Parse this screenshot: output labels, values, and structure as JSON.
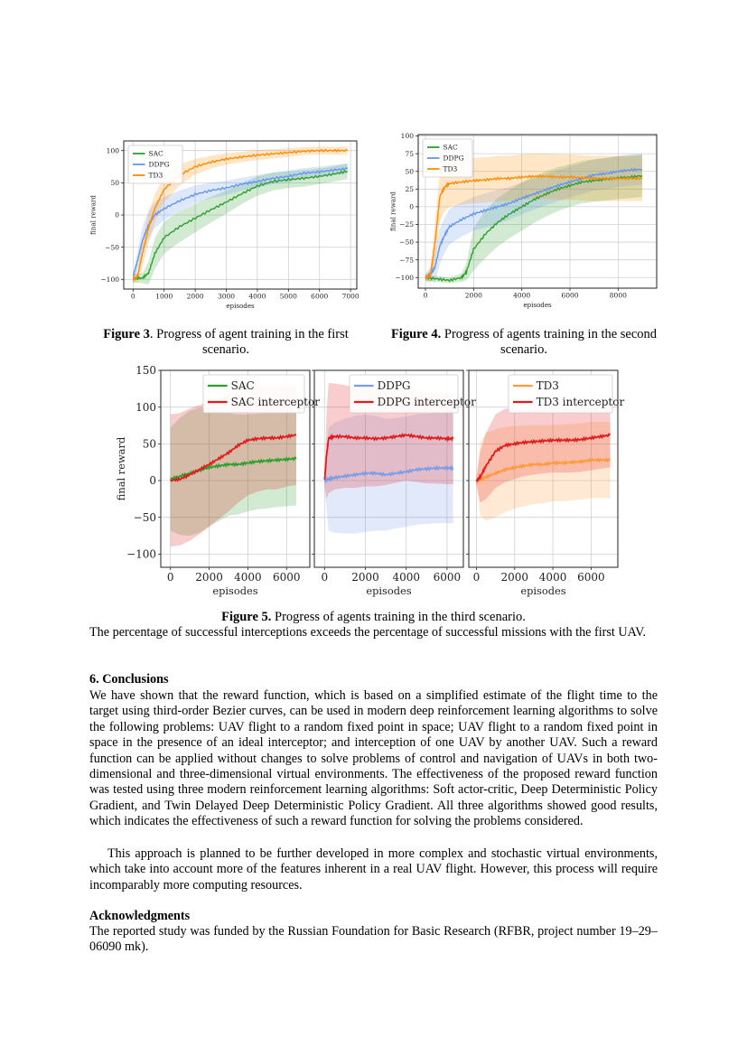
{
  "figures": {
    "fig3": {
      "caption_label": "Figure 3",
      "caption_text": ". Progress of agent training in the first scenario."
    },
    "fig4": {
      "caption_label": "Figure 4.",
      "caption_text": " Progress of agents training in the second scenario."
    },
    "fig5": {
      "caption_label": "Figure 5.",
      "caption_text": " Progress of agents training in the third scenario."
    }
  },
  "body": {
    "p_interceptions": "The percentage of successful interceptions exceeds the percentage of successful missions with the first UAV.",
    "conclusions_heading": "6. Conclusions",
    "conclusions_p1": "We have shown that the reward function, which is based on a simplified estimate of the flight time to the target using third-order Bezier curves, can be used in modern deep reinforcement learning algorithms to solve the following problems: UAV flight to a random fixed point in space; UAV flight to a random fixed point in space in the presence of an ideal interceptor; and interception of one UAV by another UAV. Such a reward function can be applied without changes to solve problems of control and navigation of UAVs in both two-dimensional and three-dimensional virtual environments. The effectiveness of the proposed reward function was tested using three modern reinforcement learning algorithms: Soft actor-critic, Deep Deterministic Policy Gradient, and Twin Delayed Deep Deterministic Policy Gradient. All three algorithms showed good results, which indicates the effectiveness of such a reward function for solving the problems considered.",
    "conclusions_p2": "This approach is planned to be further developed in more complex and stochastic virtual environments, which take into account more of the features inherent in a real UAV flight. However, this process will require incomparably more computing resources.",
    "ack_heading": "Acknowledgments",
    "ack_p": "The reported study was funded by the Russian Foundation for Basic Research (RFBR, project number 19–29–06090 mk)."
  },
  "chart_data": [
    {
      "type": "line",
      "xlabel": "episodes",
      "ylabel": "final reward",
      "xlim": [
        -300,
        7200
      ],
      "ylim": [
        -115,
        115
      ],
      "xticks": [
        0,
        1000,
        2000,
        3000,
        4000,
        5000,
        6000,
        7000
      ],
      "yticks": [
        -100,
        -50,
        0,
        50,
        100
      ],
      "grid": true,
      "legend": "top-left",
      "series": [
        {
          "name": "SAC",
          "color": "#2ca02c",
          "x": [
            0,
            300,
            500,
            700,
            1000,
            1500,
            2000,
            2500,
            3000,
            3500,
            4000,
            4500,
            5000,
            5500,
            6000,
            6500,
            6900
          ],
          "y": [
            -98,
            -98,
            -90,
            -60,
            -35,
            -18,
            -5,
            8,
            20,
            33,
            45,
            52,
            55,
            57,
            60,
            64,
            68
          ],
          "spread": [
            6,
            8,
            18,
            24,
            25,
            24,
            22,
            20,
            18,
            16,
            15,
            14,
            13,
            13,
            12,
            12,
            12
          ]
        },
        {
          "name": "DDPG",
          "color": "#6495ed",
          "x": [
            0,
            150,
            300,
            500,
            700,
            1000,
            1500,
            2000,
            2500,
            3000,
            3500,
            4000,
            4500,
            5000,
            5500,
            6000,
            6500,
            6900
          ],
          "y": [
            -96,
            -70,
            -40,
            -15,
            0,
            10,
            22,
            32,
            38,
            42,
            48,
            52,
            57,
            60,
            65,
            67,
            70,
            72
          ],
          "spread": [
            8,
            15,
            22,
            22,
            20,
            18,
            16,
            14,
            12,
            11,
            10,
            10,
            9,
            9,
            8,
            8,
            8,
            8
          ]
        },
        {
          "name": "TD3",
          "color": "#ff8c00",
          "x": [
            0,
            150,
            300,
            500,
            700,
            1000,
            1500,
            2000,
            2500,
            3000,
            3500,
            4000,
            4500,
            5000,
            5500,
            6000,
            6500,
            6900
          ],
          "y": [
            -100,
            -95,
            -60,
            -20,
            10,
            40,
            62,
            75,
            82,
            87,
            90,
            93,
            95,
            97,
            99,
            100,
            100,
            100
          ],
          "spread": [
            6,
            10,
            22,
            24,
            22,
            20,
            16,
            12,
            10,
            9,
            8,
            8,
            7,
            7,
            6,
            6,
            6,
            6
          ]
        }
      ]
    },
    {
      "type": "line",
      "xlabel": "episodes",
      "ylabel": "final reward",
      "xlim": [
        -300,
        9600
      ],
      "ylim": [
        -115,
        102
      ],
      "xticks": [
        0,
        2000,
        4000,
        6000,
        8000
      ],
      "yticks": [
        -100,
        -75,
        -50,
        -25,
        0,
        25,
        50,
        75,
        100
      ],
      "grid": true,
      "legend": "top-left",
      "series": [
        {
          "name": "SAC",
          "color": "#2ca02c",
          "x": [
            0,
            500,
            1000,
            1500,
            1700,
            2000,
            2500,
            3000,
            3500,
            4000,
            4500,
            5000,
            5500,
            6000,
            6500,
            7000,
            7500,
            8000,
            8500,
            9000
          ],
          "y": [
            -100,
            -102,
            -104,
            -100,
            -92,
            -60,
            -38,
            -22,
            -10,
            0,
            10,
            18,
            25,
            30,
            35,
            37,
            39,
            41,
            42,
            44
          ],
          "spread": [
            4,
            4,
            4,
            6,
            12,
            30,
            34,
            34,
            34,
            34,
            33,
            32,
            31,
            30,
            30,
            30,
            30,
            30,
            30,
            30
          ]
        },
        {
          "name": "DDPG",
          "color": "#6495ed",
          "x": [
            0,
            200,
            400,
            600,
            800,
            1000,
            1500,
            2000,
            2500,
            3000,
            3500,
            4000,
            4500,
            5000,
            5500,
            6000,
            6500,
            7000,
            7500,
            8000,
            8500,
            9000
          ],
          "y": [
            -100,
            -96,
            -85,
            -55,
            -40,
            -28,
            -18,
            -10,
            -5,
            0,
            5,
            12,
            18,
            24,
            30,
            35,
            40,
            45,
            47,
            50,
            52,
            53
          ],
          "spread": [
            5,
            10,
            22,
            25,
            25,
            25,
            24,
            24,
            24,
            24,
            23,
            23,
            22,
            22,
            22,
            22,
            22,
            22,
            22,
            22,
            22,
            22
          ]
        },
        {
          "name": "TD3",
          "color": "#ff8c00",
          "x": [
            0,
            200,
            400,
            600,
            800,
            1000,
            1500,
            2000,
            2500,
            3000,
            3500,
            4000,
            4500,
            5000,
            5500,
            6000,
            6500,
            7000,
            7500,
            8000,
            8500,
            9000
          ],
          "y": [
            -100,
            -98,
            -50,
            15,
            28,
            33,
            35,
            37,
            38,
            40,
            40,
            42,
            43,
            43,
            42,
            42,
            41,
            40,
            40,
            40,
            40,
            40
          ],
          "spread": [
            5,
            10,
            30,
            35,
            35,
            33,
            32,
            32,
            32,
            32,
            32,
            32,
            32,
            32,
            32,
            32,
            32,
            32,
            32,
            32,
            32,
            32
          ]
        }
      ]
    },
    {
      "type": "line",
      "xlabel": "episodes",
      "ylabel": "final reward",
      "xlim": [
        -500,
        7200
      ],
      "ylim": [
        -118,
        150
      ],
      "xticks": [
        0,
        2000,
        4000,
        6000
      ],
      "yticks": [
        -100,
        -50,
        0,
        50,
        100,
        150
      ],
      "grid": true,
      "legend": "top-right",
      "series": [
        {
          "name": "SAC",
          "color": "#2ca02c",
          "x": [
            0,
            500,
            1000,
            1500,
            2000,
            2500,
            3000,
            3500,
            4000,
            4500,
            5000,
            5500,
            6000,
            6500
          ],
          "y": [
            2,
            6,
            10,
            14,
            18,
            20,
            22,
            22,
            24,
            26,
            27,
            28,
            29,
            30
          ],
          "spread": [
            70,
            80,
            85,
            85,
            80,
            75,
            70,
            68,
            66,
            65,
            65,
            64,
            64,
            64
          ]
        },
        {
          "name": "SAC interceptor",
          "color": "#e31a1c",
          "x": [
            0,
            500,
            1000,
            1500,
            2000,
            2500,
            3000,
            3500,
            4000,
            4500,
            5000,
            5500,
            6000,
            6500
          ],
          "y": [
            0,
            2,
            8,
            15,
            22,
            30,
            38,
            48,
            55,
            57,
            58,
            58,
            60,
            62
          ],
          "spread": [
            90,
            90,
            90,
            88,
            85,
            82,
            80,
            78,
            75,
            72,
            70,
            70,
            68,
            68
          ]
        }
      ]
    },
    {
      "type": "line",
      "xlabel": "episodes",
      "ylabel": "",
      "xlim": [
        -500,
        6800
      ],
      "ylim": [
        -118,
        150
      ],
      "xticks": [
        0,
        2000,
        4000,
        6000
      ],
      "yticks": [
        -100,
        -50,
        0,
        50,
        100,
        150
      ],
      "grid": true,
      "legend": "top-right",
      "series": [
        {
          "name": "DDPG",
          "color": "#7b9ce6",
          "x": [
            0,
            200,
            500,
            1000,
            1500,
            2000,
            2500,
            3000,
            3500,
            4000,
            4500,
            5000,
            5500,
            6000,
            6300
          ],
          "y": [
            0,
            2,
            4,
            6,
            8,
            10,
            10,
            8,
            10,
            12,
            15,
            16,
            17,
            17,
            17
          ],
          "spread": [
            10,
            70,
            75,
            78,
            80,
            80,
            78,
            76,
            75,
            75,
            75,
            75,
            75,
            75,
            75
          ]
        },
        {
          "name": "DDPG interceptor",
          "color": "#e31a1c",
          "x": [
            0,
            100,
            200,
            500,
            1000,
            1500,
            2000,
            2500,
            3000,
            3500,
            4000,
            4500,
            5000,
            5500,
            6000,
            6300
          ],
          "y": [
            0,
            35,
            58,
            60,
            60,
            58,
            58,
            57,
            58,
            60,
            62,
            60,
            58,
            58,
            57,
            57
          ],
          "spread": [
            5,
            60,
            75,
            72,
            70,
            68,
            66,
            65,
            64,
            63,
            62,
            62,
            62,
            62,
            62,
            62
          ]
        }
      ]
    },
    {
      "type": "line",
      "xlabel": "episodes",
      "ylabel": "",
      "xlim": [
        -400,
        7400
      ],
      "ylim": [
        -118,
        150
      ],
      "xticks": [
        0,
        2000,
        4000,
        6000
      ],
      "yticks": [
        -100,
        -50,
        0,
        50,
        100,
        150
      ],
      "grid": true,
      "legend": "top-right",
      "series": [
        {
          "name": "TD3",
          "color": "#ff9a3c",
          "x": [
            0,
            200,
            500,
            1000,
            1500,
            2000,
            2500,
            3000,
            3500,
            4000,
            4500,
            5000,
            5500,
            6000,
            6500,
            7000
          ],
          "y": [
            0,
            2,
            5,
            10,
            15,
            18,
            20,
            22,
            22,
            24,
            24,
            25,
            26,
            28,
            28,
            28
          ],
          "spread": [
            5,
            50,
            60,
            60,
            58,
            56,
            55,
            54,
            53,
            52,
            52,
            52,
            52,
            52,
            52,
            52
          ]
        },
        {
          "name": "TD3 interceptor",
          "color": "#e31a1c",
          "x": [
            0,
            200,
            500,
            1000,
            1500,
            2000,
            2500,
            3000,
            3500,
            4000,
            4500,
            5000,
            5500,
            6000,
            6500,
            7000
          ],
          "y": [
            0,
            5,
            20,
            40,
            48,
            50,
            52,
            53,
            54,
            55,
            55,
            55,
            56,
            58,
            60,
            62
          ],
          "spread": [
            5,
            35,
            45,
            50,
            50,
            48,
            46,
            45,
            44,
            44,
            44,
            44,
            44,
            44,
            44,
            44
          ]
        }
      ]
    }
  ]
}
